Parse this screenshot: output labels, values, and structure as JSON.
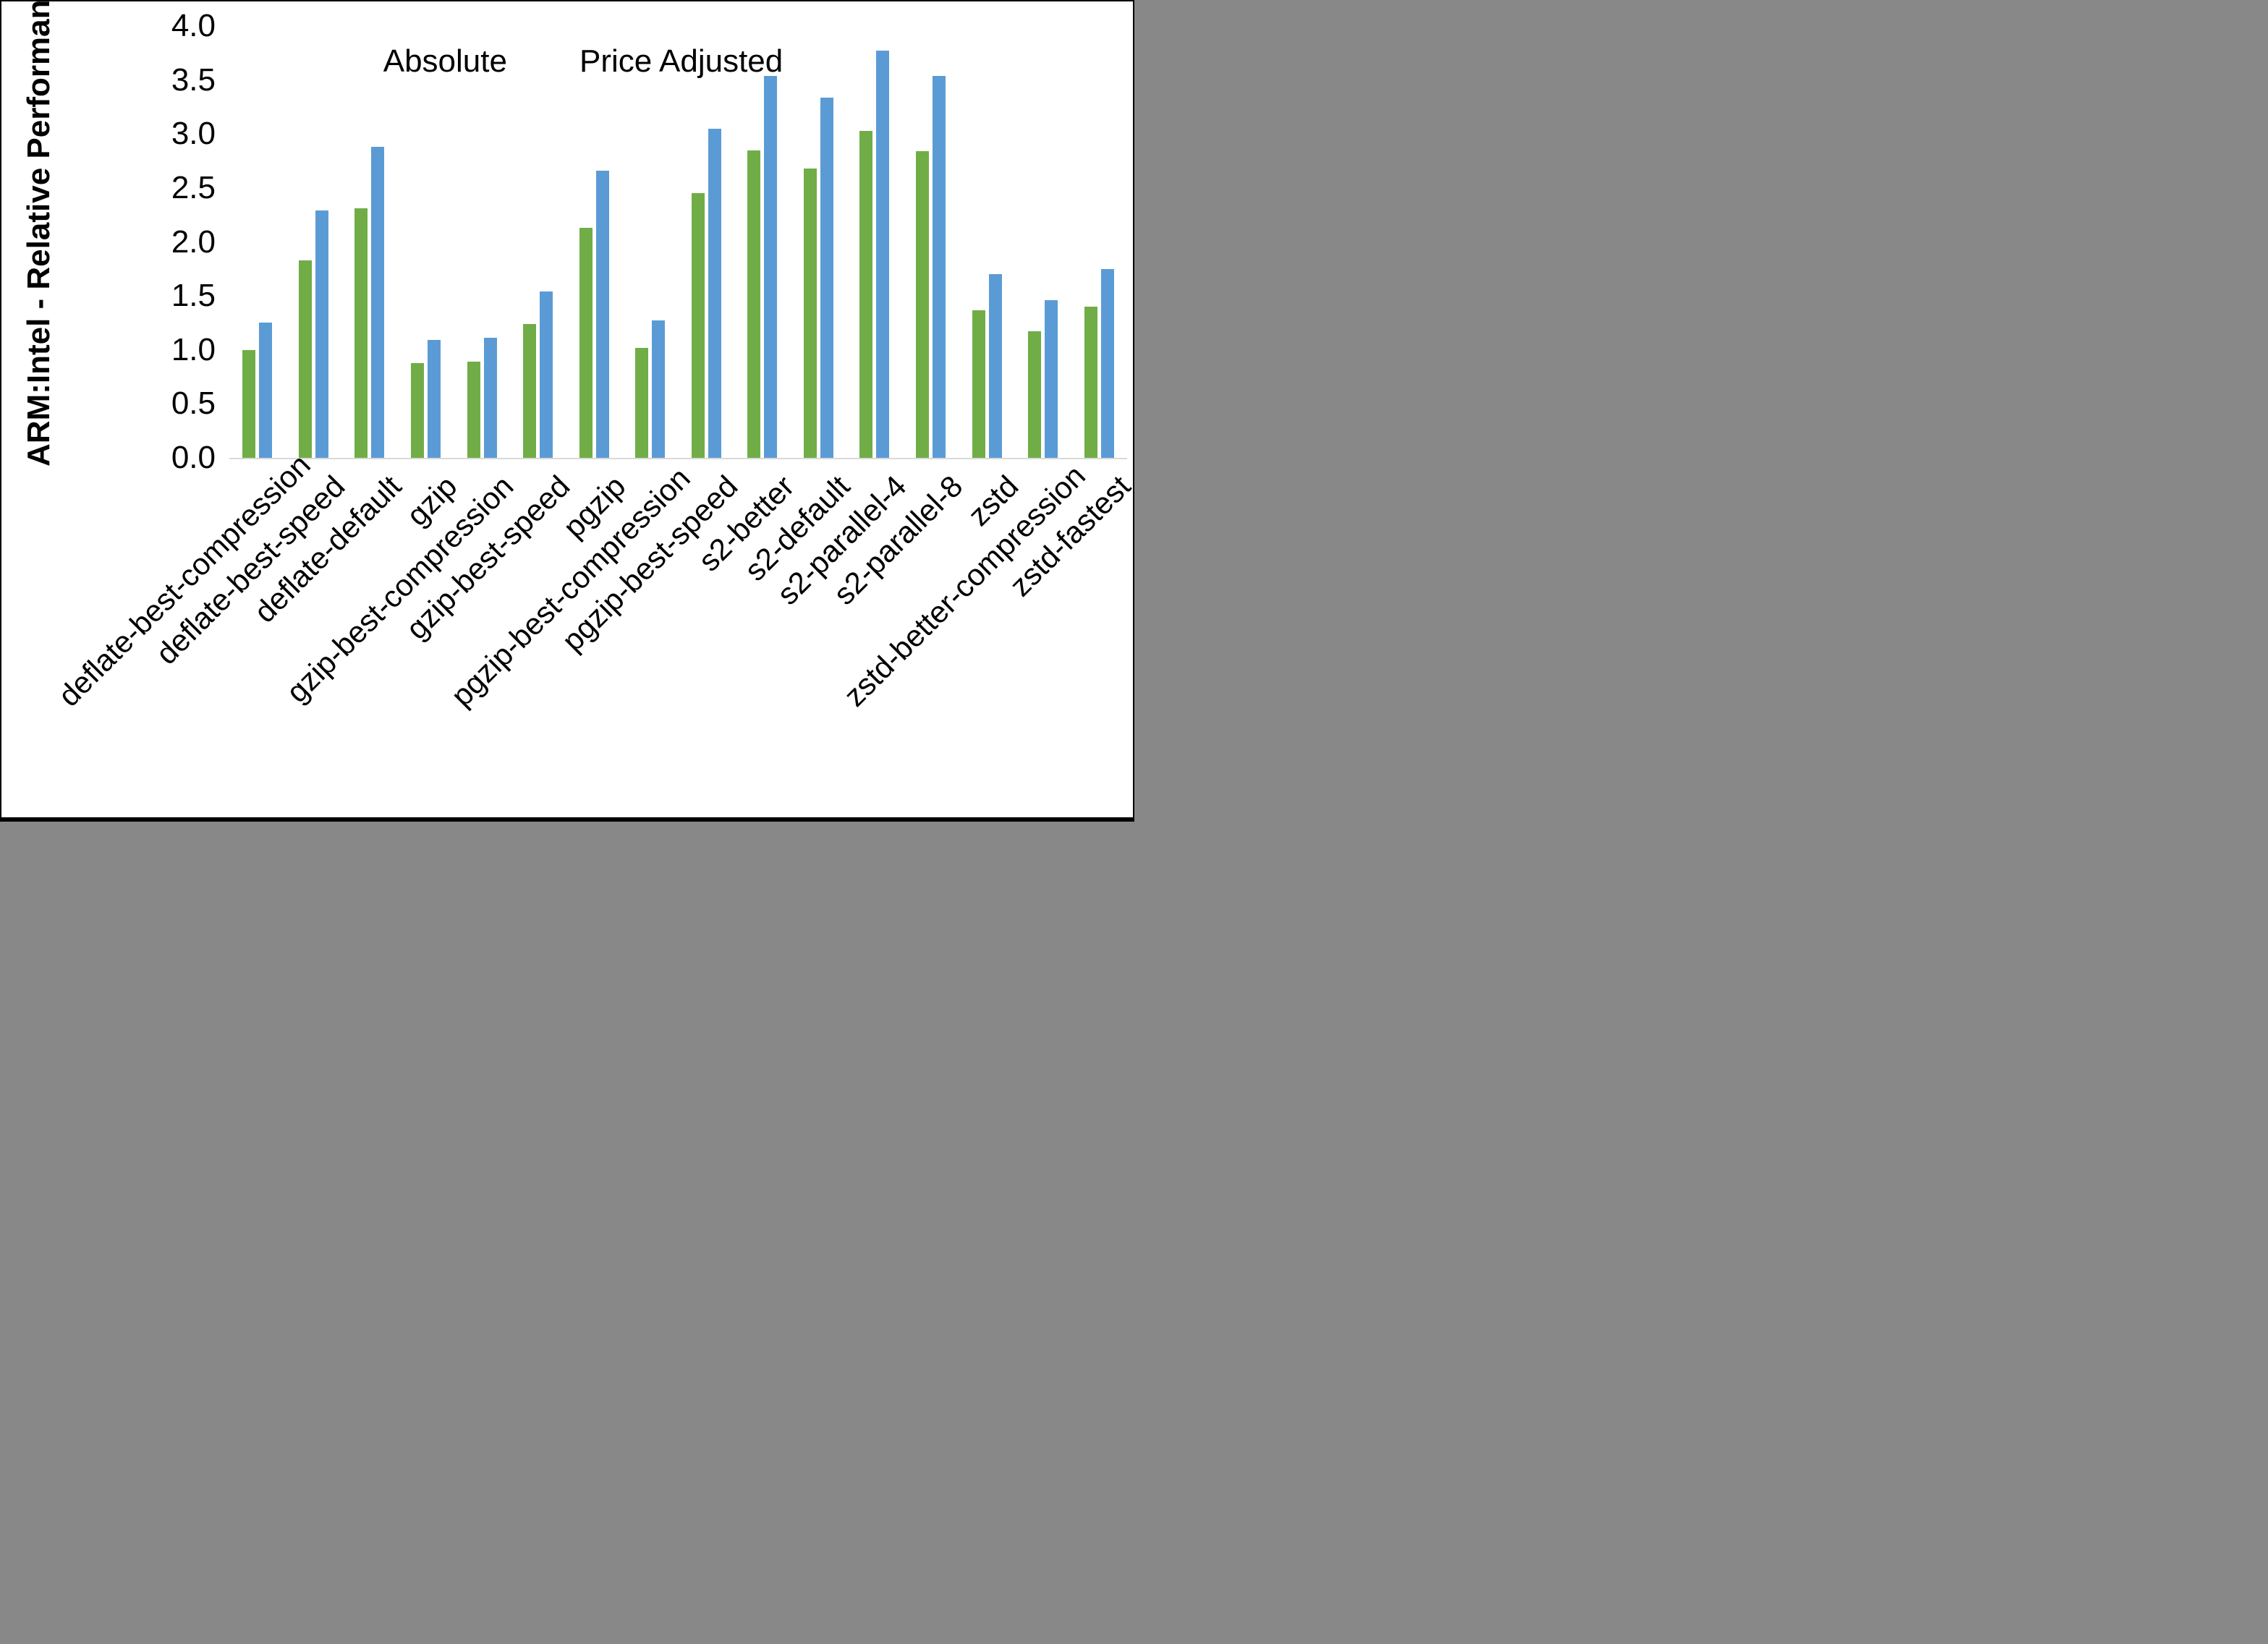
{
  "chart_data": {
    "type": "bar",
    "title": "",
    "ylabel": "ARM:Intel - Relative Performance",
    "xlabel": "",
    "ylim": [
      0.0,
      4.0
    ],
    "ytick_step": 0.5,
    "ytick_labels": [
      "0.0",
      "0.5",
      "1.0",
      "1.5",
      "2.0",
      "2.5",
      "3.0",
      "3.5",
      "4.0"
    ],
    "grid": false,
    "legend_position": "top-center",
    "categories": [
      "deflate-best-compression",
      "deflate-best-speed",
      "deflate-default",
      "gzip",
      "gzip-best-compression",
      "gzip-best-speed",
      "pgzip",
      "pgzip-best-compression",
      "pgzip-best-speed",
      "s2-better",
      "s2-default",
      "s2-parallel-4",
      "s2-parallel-8",
      "zstd",
      "zstd-better-compression",
      "zstd-fastest"
    ],
    "series": [
      {
        "name": "Absolute",
        "color": "#70AD47",
        "values": [
          1.0,
          1.83,
          2.31,
          0.88,
          0.89,
          1.24,
          2.13,
          1.02,
          2.45,
          2.85,
          2.68,
          3.03,
          2.84,
          1.37,
          1.17,
          1.4
        ]
      },
      {
        "name": "Price Adjusted",
        "color": "#5B9BD5",
        "values": [
          1.25,
          2.29,
          2.88,
          1.09,
          1.11,
          1.54,
          2.66,
          1.27,
          3.05,
          3.54,
          3.34,
          3.77,
          3.54,
          1.7,
          1.46,
          1.75
        ]
      }
    ],
    "axis_line_color": "#D9D9D9"
  },
  "legend": {
    "absolute_label": "Absolute",
    "price_adjusted_label": "Price Adjusted"
  },
  "yaxis": {
    "title": "ARM:Intel - Relative Performance"
  }
}
